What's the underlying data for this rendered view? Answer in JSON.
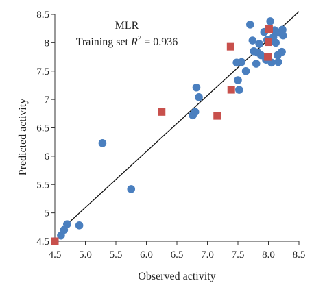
{
  "chart_data": {
    "type": "scatter",
    "title": "",
    "xlabel": "Observed activity",
    "ylabel": "Predicted activity",
    "xlim": [
      4.5,
      8.5
    ],
    "ylim": [
      4.5,
      8.5
    ],
    "xticks": [
      "4.5",
      "5.0",
      "5.5",
      "6.0",
      "6.5",
      "7.0",
      "7.5",
      "8.0",
      "8.5"
    ],
    "yticks": [
      "4.5",
      "5",
      "5.5",
      "6",
      "6.5",
      "7",
      "7.5",
      "8",
      "8.5"
    ],
    "grid": false,
    "annotation": {
      "model": "MLR",
      "text_before": "Training set ",
      "symbol": "R",
      "superscript": "2",
      "text_after": " = 0.936"
    },
    "fit_line": {
      "x": [
        4.63,
        8.5
      ],
      "y": [
        4.73,
        8.55
      ]
    },
    "series": [
      {
        "marker": "circle",
        "color": "#4a7fbf",
        "points": [
          [
            4.5,
            4.5
          ],
          [
            4.6,
            4.6
          ],
          [
            4.65,
            4.7
          ],
          [
            4.7,
            4.8
          ],
          [
            4.9,
            4.78
          ],
          [
            5.28,
            6.23
          ],
          [
            5.75,
            5.42
          ],
          [
            6.76,
            6.72
          ],
          [
            6.8,
            6.78
          ],
          [
            6.82,
            7.21
          ],
          [
            6.86,
            7.04
          ],
          [
            7.48,
            7.65
          ],
          [
            7.5,
            7.34
          ],
          [
            7.52,
            7.17
          ],
          [
            7.56,
            7.66
          ],
          [
            7.63,
            7.5
          ],
          [
            7.7,
            8.32
          ],
          [
            7.74,
            8.04
          ],
          [
            7.76,
            7.85
          ],
          [
            7.8,
            7.63
          ],
          [
            7.82,
            7.83
          ],
          [
            7.85,
            7.98
          ],
          [
            7.88,
            7.78
          ],
          [
            7.93,
            8.19
          ],
          [
            7.96,
            7.7
          ],
          [
            7.98,
            8.05
          ],
          [
            8.03,
            8.38
          ],
          [
            8.05,
            7.65
          ],
          [
            8.08,
            8.1
          ],
          [
            8.1,
            8.22
          ],
          [
            8.12,
            8.0
          ],
          [
            8.15,
            7.78
          ],
          [
            8.16,
            7.66
          ],
          [
            8.18,
            8.18
          ],
          [
            8.22,
            7.84
          ],
          [
            8.23,
            8.23
          ],
          [
            8.24,
            8.13
          ]
        ]
      },
      {
        "marker": "square",
        "color": "#c8504c",
        "points": [
          [
            4.5,
            4.5
          ],
          [
            6.25,
            6.78
          ],
          [
            7.16,
            6.71
          ],
          [
            7.38,
            7.93
          ],
          [
            7.39,
            7.17
          ],
          [
            7.99,
            7.75
          ],
          [
            8.0,
            8.01
          ],
          [
            8.01,
            8.24
          ]
        ]
      }
    ]
  }
}
